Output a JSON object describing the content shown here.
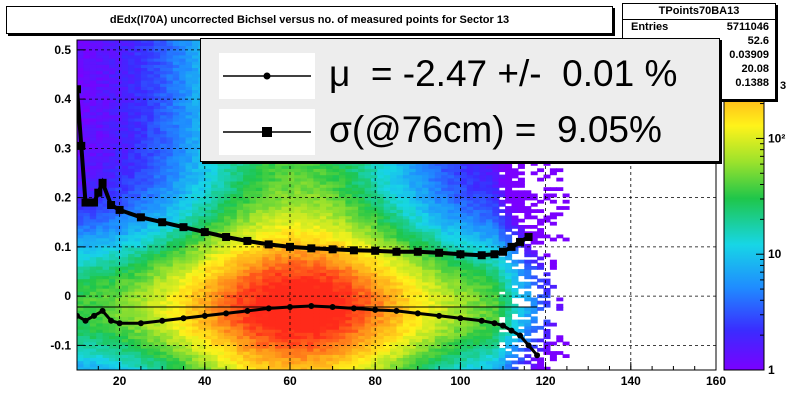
{
  "title": "dEdx(I70A) uncorrected Bichsel versus no. of measured points for Sector 13",
  "stats": {
    "name": "TPoints70BA13",
    "rows": [
      {
        "key": "Entries",
        "value": "5711046"
      },
      {
        "key": "",
        "value": "52.6"
      },
      {
        "key": "",
        "value": "0.03909"
      },
      {
        "key": "",
        "value": "20.08"
      },
      {
        "key": "",
        "value": "0.1388"
      }
    ]
  },
  "legend": {
    "mu_text": "μ  = -2.47 +/-  0.01 %",
    "sigma_text": "σ(@76cm) =  9.05%"
  },
  "palette_fragment": "3",
  "chart_data": {
    "type": "heatmap",
    "title": "dEdx(I70A) uncorrected Bichsel versus no. of measured points for Sector 13",
    "xlim": [
      10,
      160
    ],
    "ylim": [
      -0.15,
      0.52
    ],
    "x_ticks": [
      20,
      40,
      60,
      80,
      100,
      120,
      140,
      160
    ],
    "x_tick_labels": [
      "20",
      "40",
      "60",
      "80",
      "100",
      "120",
      "140",
      "160"
    ],
    "y_ticks": [
      -0.1,
      0,
      0.1,
      0.2,
      0.3,
      0.4,
      0.5
    ],
    "y_tick_labels": [
      "-0.1",
      "0",
      "0.1",
      "0.2",
      "0.3",
      "0.4",
      "0.5"
    ],
    "z_scale": "log",
    "z_ticks": [
      1,
      10,
      100
    ],
    "z_tick_labels": [
      "1",
      "10",
      "10²"
    ],
    "grid": true,
    "heatmap_peak": {
      "x": 62,
      "y": -0.02
    },
    "series": [
      {
        "name": "μ",
        "marker": "circle",
        "x": [
          10,
          12,
          14,
          16,
          18,
          20,
          25,
          30,
          35,
          40,
          45,
          50,
          55,
          60,
          65,
          70,
          75,
          80,
          85,
          90,
          95,
          100,
          105,
          108,
          110,
          112,
          114,
          116,
          118
        ],
        "y": [
          -0.04,
          -0.05,
          -0.04,
          -0.03,
          -0.05,
          -0.055,
          -0.055,
          -0.05,
          -0.045,
          -0.04,
          -0.035,
          -0.03,
          -0.025,
          -0.022,
          -0.02,
          -0.022,
          -0.025,
          -0.028,
          -0.03,
          -0.035,
          -0.04,
          -0.045,
          -0.05,
          -0.055,
          -0.06,
          -0.07,
          -0.08,
          -0.1,
          -0.12
        ]
      },
      {
        "name": "σ(@76cm)",
        "marker": "square",
        "x": [
          10,
          11,
          12,
          13,
          14,
          15,
          16,
          18,
          20,
          25,
          30,
          35,
          40,
          45,
          50,
          55,
          60,
          65,
          70,
          75,
          80,
          85,
          90,
          95,
          100,
          105,
          108,
          110,
          112,
          114,
          116
        ],
        "y": [
          0.42,
          0.305,
          0.19,
          0.19,
          0.19,
          0.21,
          0.23,
          0.185,
          0.175,
          0.16,
          0.15,
          0.14,
          0.13,
          0.12,
          0.112,
          0.105,
          0.1,
          0.097,
          0.095,
          0.093,
          0.092,
          0.09,
          0.09,
          0.088,
          0.085,
          0.083,
          0.085,
          0.09,
          0.1,
          0.11,
          0.12
        ]
      }
    ]
  },
  "colors": {
    "panel_bg": "#ededed",
    "marker": "#000000"
  }
}
